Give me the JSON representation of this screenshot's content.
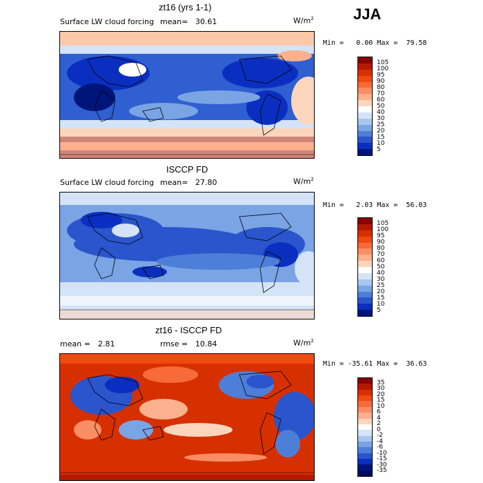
{
  "season": "JJA",
  "panels": [
    {
      "title": "zt16 (yrs 1-1)",
      "left_label": "Surface LW cloud forcing",
      "mean_label": "mean=",
      "mean_value": "30.61",
      "units_base": "W/m",
      "units_exp": "2",
      "min_label": "Min =",
      "min_value": "0.00",
      "max_label": "Max =",
      "max_value": "79.58",
      "levels": [
        "105",
        "100",
        "95",
        "90",
        "80",
        "70",
        "60",
        "50",
        "40",
        "30",
        "25",
        "20",
        "15",
        "10",
        "5"
      ],
      "colors": [
        "#8b0000",
        "#b51a00",
        "#d73000",
        "#f04a10",
        "#f76a3a",
        "#f98d63",
        "#fbb08e",
        "#fcd6bc",
        "#ffffff",
        "#d4e3f7",
        "#a9c6ef",
        "#7aa4e4",
        "#4d7fd8",
        "#2a55cc",
        "#0a2fc0",
        "#00157a"
      ]
    },
    {
      "title": "ISCCP FD",
      "left_label": "Surface LW cloud forcing",
      "mean_label": "mean=",
      "mean_value": "27.80",
      "units_base": "W/m",
      "units_exp": "2",
      "min_label": "Min =",
      "min_value": "2.03",
      "max_label": "Max =",
      "max_value": "56.03",
      "levels": [
        "105",
        "100",
        "95",
        "90",
        "80",
        "70",
        "60",
        "50",
        "40",
        "30",
        "25",
        "20",
        "15",
        "10",
        "5"
      ],
      "colors": [
        "#8b0000",
        "#b51a00",
        "#d73000",
        "#f04a10",
        "#f76a3a",
        "#f98d63",
        "#fbb08e",
        "#fcd6bc",
        "#ffffff",
        "#d4e3f7",
        "#a9c6ef",
        "#7aa4e4",
        "#4d7fd8",
        "#2a55cc",
        "#0a2fc0",
        "#00157a"
      ]
    },
    {
      "title": "zt16 - ISCCP FD",
      "left_label": "",
      "mean_label": "mean =",
      "mean_value": "2.81",
      "rmse_label": "rmse =",
      "rmse_value": "10.84",
      "units_base": "W/m",
      "units_exp": "2",
      "min_label": "Min =",
      "min_value": "-35.61",
      "max_label": "Max =",
      "max_value": "36.63",
      "levels": [
        "35",
        "30",
        "20",
        "15",
        "10",
        "6",
        "4",
        "2",
        "0",
        "-2",
        "-4",
        "-6",
        "-10",
        "-15",
        "-30",
        "-35"
      ],
      "colors": [
        "#8b0000",
        "#b51a00",
        "#d73000",
        "#f04a10",
        "#f76a3a",
        "#f98d63",
        "#fbb08e",
        "#fcd6bc",
        "#ffffff",
        "#d4e3f7",
        "#a9c6ef",
        "#7aa4e4",
        "#4d7fd8",
        "#2a55cc",
        "#0a2fc0",
        "#00157a",
        "#000a60"
      ]
    }
  ]
}
